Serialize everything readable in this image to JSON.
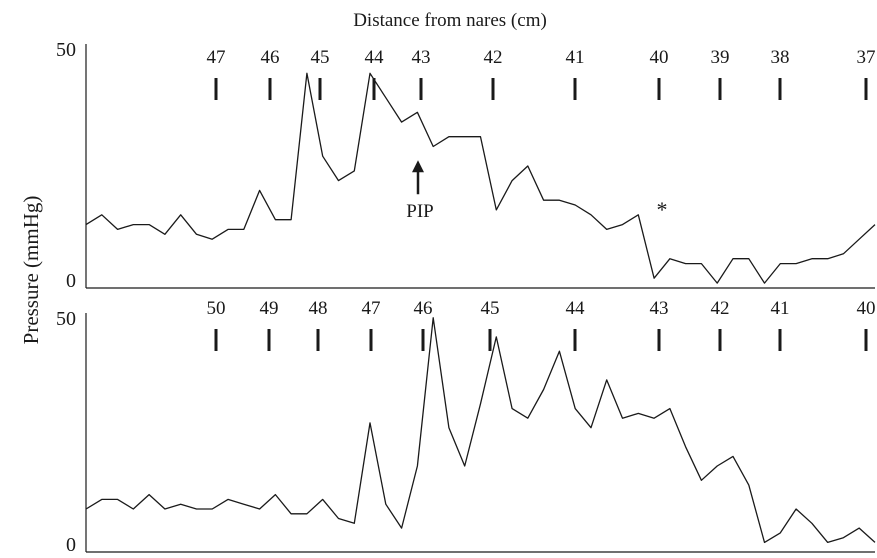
{
  "figure": {
    "top_label": "Distance from nares (cm)",
    "y_axis_label": "Pressure (mmHg)",
    "line_color": "#1a1a1a"
  },
  "chart_data": [
    {
      "type": "line",
      "panel": "top",
      "ylim": [
        0,
        50
      ],
      "y_ticks": [
        "0",
        "50"
      ],
      "distance_markers": [
        "47",
        "46",
        "45",
        "44",
        "43",
        "42",
        "41",
        "40",
        "39",
        "38",
        "37"
      ],
      "annotations": [
        {
          "text": "PIP",
          "kind": "arrow",
          "at_marker": "43",
          "value": 27
        },
        {
          "text": "*",
          "kind": "mark",
          "at_marker": "40",
          "value": 15
        }
      ],
      "x": [
        0,
        2,
        4,
        6,
        8,
        10,
        12,
        14,
        16,
        18,
        20,
        22,
        24,
        26,
        28,
        30,
        32,
        34,
        36,
        38,
        40,
        42,
        44,
        46,
        48,
        50,
        52,
        54,
        56,
        58,
        60,
        62,
        64,
        66,
        68,
        70,
        72,
        74,
        76,
        78,
        80,
        82,
        84,
        86,
        88,
        90,
        92,
        94,
        96,
        98,
        100
      ],
      "values": [
        13,
        15,
        12,
        13,
        13,
        11,
        15,
        11,
        10,
        12,
        12,
        20,
        14,
        14,
        44,
        27,
        22,
        24,
        44,
        39,
        34,
        36,
        29,
        31,
        31,
        31,
        16,
        22,
        25,
        18,
        18,
        17,
        15,
        12,
        13,
        15,
        2,
        6,
        5,
        5,
        1,
        6,
        6,
        1,
        5,
        5,
        6,
        6,
        7,
        10,
        13
      ]
    },
    {
      "type": "line",
      "panel": "bottom",
      "ylim": [
        0,
        50
      ],
      "y_ticks": [
        "0",
        "50"
      ],
      "distance_markers": [
        "50",
        "49",
        "48",
        "47",
        "46",
        "45",
        "44",
        "43",
        "42",
        "41",
        "40"
      ],
      "annotations": [],
      "x": [
        0,
        2,
        4,
        6,
        8,
        10,
        12,
        14,
        16,
        18,
        20,
        22,
        24,
        26,
        28,
        30,
        32,
        34,
        36,
        38,
        40,
        42,
        44,
        46,
        48,
        50,
        52,
        54,
        56,
        58,
        60,
        62,
        64,
        66,
        68,
        70,
        72,
        74,
        76,
        78,
        80,
        82,
        84,
        86,
        88,
        90,
        92,
        94,
        96,
        98,
        100
      ],
      "values": [
        9,
        11,
        11,
        9,
        12,
        9,
        10,
        9,
        9,
        11,
        10,
        9,
        12,
        8,
        8,
        11,
        7,
        6,
        27,
        10,
        5,
        18,
        49,
        26,
        18,
        31,
        45,
        30,
        28,
        34,
        42,
        30,
        26,
        36,
        28,
        29,
        28,
        30,
        22,
        15,
        18,
        20,
        14,
        2,
        4,
        9,
        6,
        2,
        3,
        5,
        2
      ]
    }
  ]
}
